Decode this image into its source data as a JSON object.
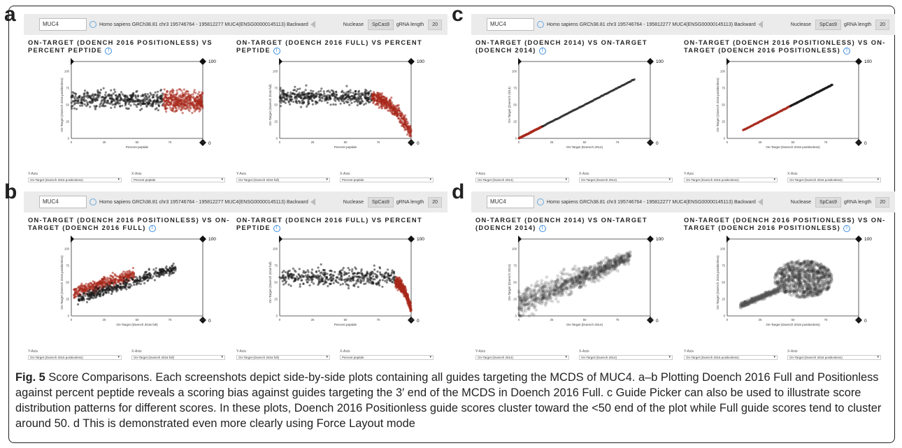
{
  "figure": {
    "caption_label": "Fig. 5",
    "caption_text": "Score Comparisons. Each screenshots depict side-by-side plots containing all guides targeting the MCDS of MUC4. a–b Plotting Doench 2016 Full and Positionless against percent peptide reveals a scoring bias against guides targeting the 3′ end of the MCDS in Doench 2016 Full. c Guide Picker can also be used to illustrate score distribution patterns for different scores. In these plots, Doench 2016 Positionless guide scores cluster toward the <50 end of the plot while Full guide scores tend to cluster around 50. d This is demonstrated even more clearly using Force Layout mode"
  },
  "toolbar": {
    "gene": "MUC4",
    "location": "Homo sapiens GRCh38.81  chr3  195746764 - 195812277  MUC4(ENSG00000145113)  Backward",
    "nuclease_label": "Nuclease",
    "nuclease_value": "SpCas9",
    "grna_label": "gRNA length",
    "grna_value": "20"
  },
  "colors": {
    "highlight": "#a8281c",
    "point": "#1a1a1a"
  },
  "panels": [
    {
      "label": "a",
      "plots": [
        {
          "title": "ON-TARGET (DOENCH 2016 POSITIONLESS) VS PERCENT PEPTIDE",
          "xlabel": "Percent peptide",
          "ylabel": "On-Target (Doench 2016 positionless)",
          "xticks": [
            "0",
            "25",
            "50",
            "75",
            "100"
          ],
          "yticks": [
            "0",
            "25",
            "50",
            "75",
            "100"
          ],
          "corner_top": "100",
          "corner_right": "100",
          "corner_bottom": "0",
          "corner_zero": "0",
          "ysel_label": "Y-Axis",
          "ysel_value": "On-Target (Doench 2016 positionless)",
          "xsel_label": "X-Axis",
          "xsel_value": "Percent peptide"
        },
        {
          "title": "ON-TARGET (DOENCH 2016 FULL) VS PERCENT PEPTIDE",
          "xlabel": "Percent peptide",
          "ylabel": "On-Target (Doench 2016 full)",
          "xticks": [
            "0",
            "25",
            "50",
            "75",
            "100"
          ],
          "yticks": [
            "0",
            "25",
            "50",
            "75",
            "100"
          ],
          "corner_top": "100",
          "corner_right": "100",
          "corner_bottom": "0",
          "corner_zero": "0",
          "ysel_label": "Y-Axis",
          "ysel_value": "On-Target (Doench 2016 full)",
          "xsel_label": "X-Axis",
          "xsel_value": "Percent peptide"
        }
      ]
    },
    {
      "label": "b",
      "plots": [
        {
          "title": "ON-TARGET (DOENCH 2016 POSITIONLESS) VS ON-TARGET (DOENCH 2016 FULL)",
          "xlabel": "On-Target (Doench 2016 full)",
          "ylabel": "On-Target (Doench 2016 positionless)",
          "xticks": [
            "0",
            "25",
            "50",
            "75",
            "100"
          ],
          "yticks": [
            "0",
            "25",
            "50",
            "75",
            "100"
          ],
          "corner_top": "100",
          "corner_right": "100",
          "corner_bottom": "0",
          "corner_zero": "0",
          "ysel_label": "Y-Axis",
          "ysel_value": "On-Target (Doench 2016 positionless)",
          "xsel_label": "X-Axis",
          "xsel_value": "On-Target (Doench 2016 full)"
        },
        {
          "title": "ON-TARGET (DOENCH 2016 FULL) VS PERCENT PEPTIDE",
          "xlabel": "Percent peptide",
          "ylabel": "On-Target (Doench 2016 full)",
          "xticks": [
            "0",
            "25",
            "50",
            "75",
            "100"
          ],
          "yticks": [
            "0",
            "25",
            "50",
            "75",
            "100"
          ],
          "corner_top": "100",
          "corner_right": "100",
          "corner_bottom": "0",
          "corner_zero": "0",
          "ysel_label": "Y-Axis",
          "ysel_value": "On-Target (Doench 2016 full)",
          "xsel_label": "X-Axis",
          "xsel_value": "Percent peptide"
        }
      ]
    },
    {
      "label": "c",
      "plots": [
        {
          "title": "ON-TARGET (DOENCH 2014) VS ON-TARGET (DOENCH 2014)",
          "xlabel": "On-Target (Doench 2014)",
          "ylabel": "On-Target (Doench 2014)",
          "xticks": [
            "0",
            "25",
            "50",
            "75",
            "100"
          ],
          "yticks": [
            "0",
            "25",
            "50",
            "75",
            "100"
          ],
          "corner_top": "100",
          "corner_right": "100",
          "corner_bottom": "0",
          "corner_zero": "0",
          "ysel_label": "Y-Axis",
          "ysel_value": "On-Target (Doench 2014)",
          "xsel_label": "X-Axis",
          "xsel_value": "On-Target (Doench 2014)"
        },
        {
          "title": "ON-TARGET (DOENCH 2016 POSITIONLESS) VS ON-TARGET (DOENCH 2016 POSITIONLESS)",
          "xlabel": "On-Target (Doench 2016 positionless)",
          "ylabel": "On-Target (Doench 2016 positionless)",
          "xticks": [
            "0",
            "25",
            "50",
            "75",
            "100"
          ],
          "yticks": [
            "0",
            "25",
            "50",
            "75",
            "100"
          ],
          "corner_top": "100",
          "corner_right": "100",
          "corner_bottom": "0",
          "corner_zero": "0",
          "ysel_label": "Y-Axis",
          "ysel_value": "On-Target (Doench 2016 positionless)",
          "xsel_label": "X-Axis",
          "xsel_value": "On-Target (Doench 2016 positionless)"
        }
      ]
    },
    {
      "label": "d",
      "plots": [
        {
          "title": "ON-TARGET (DOENCH 2014) VS ON-TARGET (DOENCH 2014)",
          "xlabel": "On-Target (Doench 2014)",
          "ylabel": "On-Target (Doench 2014)",
          "xticks": [
            "0",
            "25",
            "50",
            "75",
            "100"
          ],
          "yticks": [
            "0",
            "25",
            "50",
            "75",
            "100"
          ],
          "corner_top": "100",
          "corner_right": "100",
          "corner_bottom": "0",
          "corner_zero": "0",
          "ysel_label": "Y-Axis",
          "ysel_value": "On-Target (Doench 2014)",
          "xsel_label": "X-Axis",
          "xsel_value": "On-Target (Doench 2014)"
        },
        {
          "title": "ON-TARGET (DOENCH 2016 POSITIONLESS) VS ON-TARGET (DOENCH 2016 POSITIONLESS)",
          "xlabel": "On-Target (Doench 2016 positionless)",
          "ylabel": "On-Target (Doench 2016 positionless)",
          "xticks": [
            "0",
            "25",
            "50",
            "75",
            "100"
          ],
          "yticks": [
            "0",
            "25",
            "50",
            "75",
            "100"
          ],
          "corner_top": "100",
          "corner_right": "100",
          "corner_bottom": "0",
          "corner_zero": "0",
          "ysel_label": "Y-Axis",
          "ysel_value": "On-Target (Doench 2016 positionless)",
          "xsel_label": "X-Axis",
          "xsel_value": "On-Target (Doench 2016 positionless)"
        }
      ]
    }
  ],
  "chart_data": [
    {
      "panel": "a-left",
      "type": "scatter",
      "xlim": [
        0,
        100
      ],
      "ylim": [
        0,
        100
      ],
      "series": [
        {
          "pattern": "band",
          "x_range": [
            0,
            70
          ],
          "y_center": 58,
          "y_spread": 13,
          "color": "#1a1a1a"
        },
        {
          "pattern": "band",
          "x_range": [
            70,
            100
          ],
          "y_center": 55,
          "y_spread": 15,
          "color": "#a8281c"
        }
      ]
    },
    {
      "panel": "a-right",
      "type": "scatter",
      "xlim": [
        0,
        100
      ],
      "ylim": [
        0,
        100
      ],
      "series": [
        {
          "pattern": "plateau",
          "x_range": [
            0,
            70
          ],
          "y_center": 62,
          "y_spread": 12,
          "color": "#1a1a1a"
        },
        {
          "pattern": "decline",
          "x_range": [
            70,
            100
          ],
          "y_start": 60,
          "y_end": 8,
          "y_spread": 10,
          "color": "#a8281c"
        }
      ]
    },
    {
      "panel": "b-left",
      "type": "scatter",
      "xlim": [
        0,
        100
      ],
      "ylim": [
        0,
        100
      ],
      "series": [
        {
          "pattern": "trend",
          "x_range": [
            2,
            48
          ],
          "y_start": 35,
          "y_end": 62,
          "y_spread": 9,
          "color": "#a8281c"
        },
        {
          "pattern": "trend",
          "x_range": [
            5,
            80
          ],
          "y_start": 25,
          "y_end": 72,
          "y_spread": 8,
          "color": "#1a1a1a"
        }
      ]
    },
    {
      "panel": "b-right",
      "type": "scatter",
      "xlim": [
        0,
        100
      ],
      "ylim": [
        0,
        100
      ],
      "series": [
        {
          "pattern": "plateau",
          "x_range": [
            0,
            88
          ],
          "y_center": 58,
          "y_spread": 13,
          "color": "#1a1a1a"
        },
        {
          "pattern": "decline",
          "x_range": [
            88,
            100
          ],
          "y_start": 50,
          "y_end": 10,
          "y_spread": 8,
          "color": "#a8281c"
        }
      ]
    },
    {
      "panel": "c-left",
      "type": "scatter",
      "xlim": [
        0,
        100
      ],
      "ylim": [
        0,
        100
      ],
      "series": [
        {
          "pattern": "diagonal",
          "x_range": [
            0,
            18
          ],
          "color": "#a8281c"
        },
        {
          "pattern": "diagonal",
          "x_range": [
            18,
            88
          ],
          "color": "#1a1a1a"
        }
      ]
    },
    {
      "panel": "c-right",
      "type": "scatter",
      "xlim": [
        0,
        100
      ],
      "ylim": [
        0,
        100
      ],
      "series": [
        {
          "pattern": "diagonal",
          "x_range": [
            12,
            48
          ],
          "color": "#a8281c"
        },
        {
          "pattern": "diagonal",
          "x_range": [
            48,
            80
          ],
          "color": "#1a1a1a"
        }
      ]
    },
    {
      "panel": "d-left",
      "type": "scatter",
      "xlim": [
        0,
        100
      ],
      "ylim": [
        0,
        100
      ],
      "series": [
        {
          "pattern": "cloud",
          "x_range": [
            0,
            85
          ],
          "y_start": 18,
          "y_end": 88,
          "y_spread": 22,
          "color": "#333333"
        }
      ]
    },
    {
      "panel": "d-right",
      "type": "scatter",
      "xlim": [
        0,
        100
      ],
      "ylim": [
        0,
        100
      ],
      "series": [
        {
          "pattern": "blob",
          "cx": 58,
          "cy": 55,
          "rx": 22,
          "ry": 28,
          "color": "#222222"
        },
        {
          "pattern": "trend",
          "x_range": [
            10,
            40
          ],
          "y_start": 15,
          "y_end": 40,
          "y_spread": 4,
          "color": "#555555"
        }
      ]
    }
  ]
}
